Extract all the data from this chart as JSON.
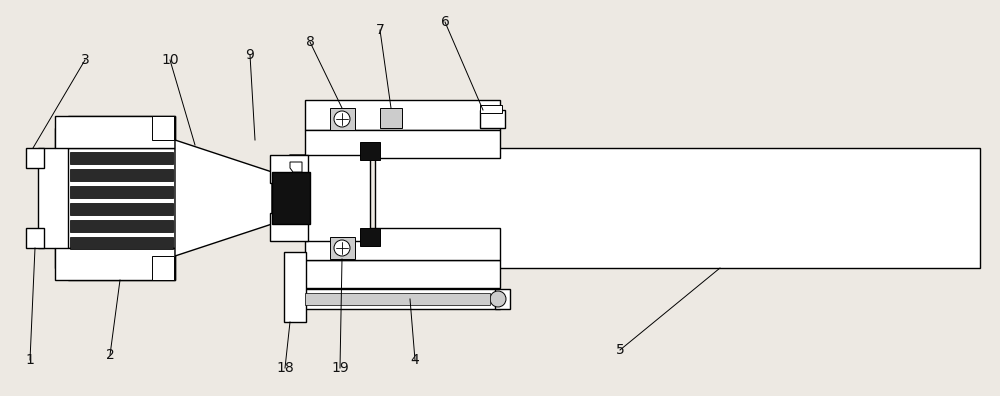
{
  "bg_color": "#ede9e3",
  "line_color": "#000000",
  "dark_fill": "#111111",
  "gray_fill": "#888888",
  "light_gray": "#cccccc",
  "white_fill": "#ffffff",
  "figsize": [
    10.0,
    3.96
  ],
  "dpi": 100,
  "label_fs": 10,
  "label_color": "#111111"
}
